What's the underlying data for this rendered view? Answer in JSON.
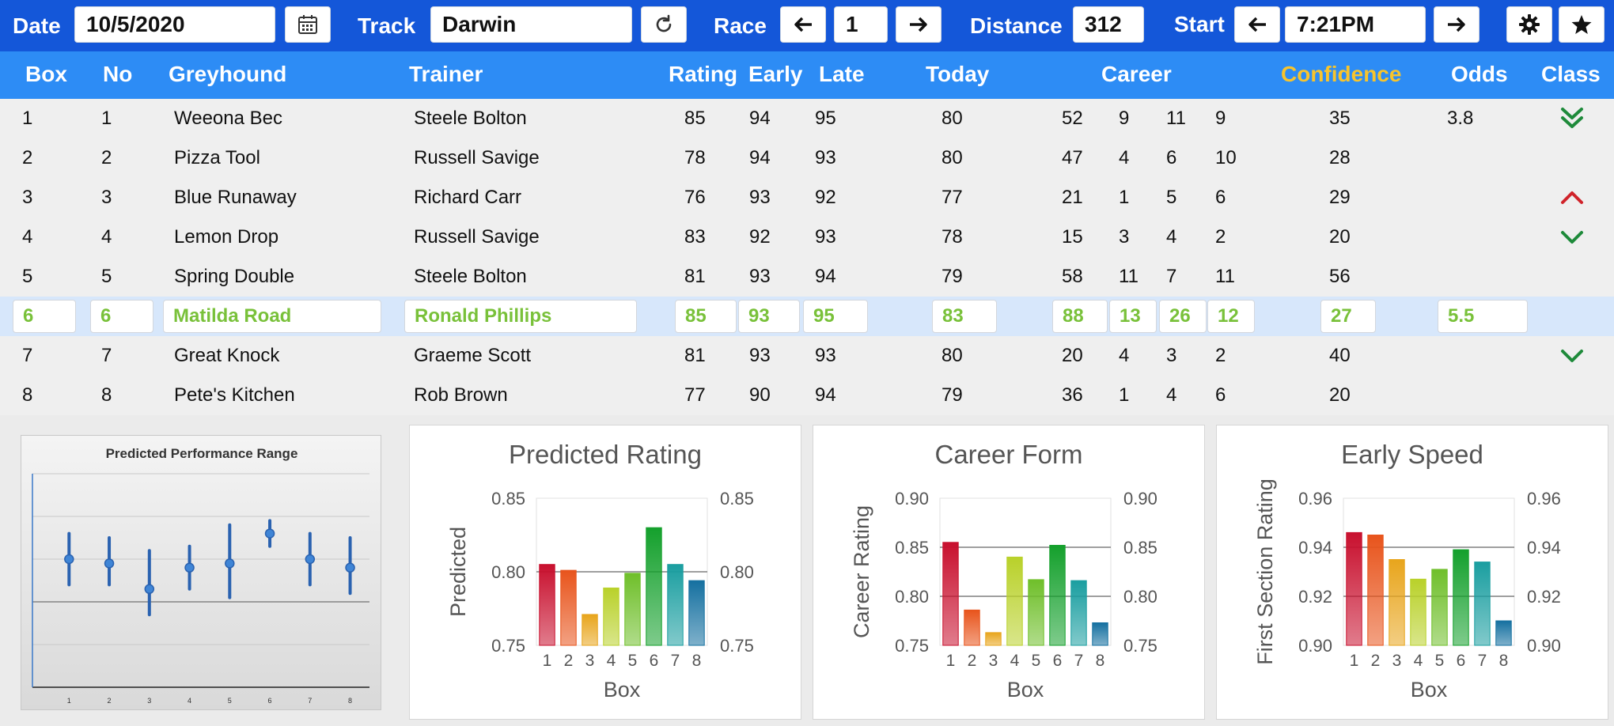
{
  "toolbar": {
    "date_label": "Date",
    "date_value": "10/5/2020",
    "calendar_icon": "calendar-icon",
    "track_label": "Track",
    "track_value": "Darwin",
    "refresh_icon": "refresh-icon",
    "race_label": "Race",
    "race_value": "1",
    "distance_label": "Distance",
    "distance_value": "312",
    "start_label": "Start",
    "start_value": "7:21PM",
    "settings_icon": "gear-icon",
    "favorite_icon": "star-icon"
  },
  "table": {
    "headers": {
      "box": "Box",
      "no": "No",
      "greyhound": "Greyhound",
      "trainer": "Trainer",
      "rating": "Rating",
      "early": "Early",
      "late": "Late",
      "today": "Today",
      "career": "Career",
      "confidence": "Confidence",
      "odds": "Odds",
      "class": "Class"
    },
    "rows": [
      {
        "box": "1",
        "no": "1",
        "greyhound": "Weeona Bec",
        "trainer": "Steele Bolton",
        "rating": "85",
        "early": "94",
        "late": "95",
        "today": "80",
        "career": [
          "52",
          "9",
          "11",
          "9"
        ],
        "confidence": "35",
        "odds": "3.8",
        "class": "double-down"
      },
      {
        "box": "2",
        "no": "2",
        "greyhound": "Pizza Tool",
        "trainer": "Russell Savige",
        "rating": "78",
        "early": "94",
        "late": "93",
        "today": "80",
        "career": [
          "47",
          "4",
          "6",
          "10"
        ],
        "confidence": "28",
        "odds": "",
        "class": "none"
      },
      {
        "box": "3",
        "no": "3",
        "greyhound": "Blue Runaway",
        "trainer": "Richard Carr",
        "rating": "76",
        "early": "93",
        "late": "92",
        "today": "77",
        "career": [
          "21",
          "1",
          "5",
          "6"
        ],
        "confidence": "29",
        "odds": "",
        "class": "up"
      },
      {
        "box": "4",
        "no": "4",
        "greyhound": "Lemon Drop",
        "trainer": "Russell Savige",
        "rating": "83",
        "early": "92",
        "late": "93",
        "today": "78",
        "career": [
          "15",
          "3",
          "4",
          "2"
        ],
        "confidence": "20",
        "odds": "",
        "class": "down"
      },
      {
        "box": "5",
        "no": "5",
        "greyhound": "Spring Double",
        "trainer": "Steele Bolton",
        "rating": "81",
        "early": "93",
        "late": "94",
        "today": "79",
        "career": [
          "58",
          "11",
          "7",
          "11"
        ],
        "confidence": "56",
        "odds": "",
        "class": "none"
      },
      {
        "box": "6",
        "no": "6",
        "greyhound": "Matilda Road",
        "trainer": "Ronald Phillips",
        "rating": "85",
        "early": "93",
        "late": "95",
        "today": "83",
        "career": [
          "88",
          "13",
          "26",
          "12"
        ],
        "confidence": "27",
        "odds": "5.5",
        "class": "none",
        "selected": true
      },
      {
        "box": "7",
        "no": "7",
        "greyhound": "Great Knock",
        "trainer": "Graeme Scott",
        "rating": "81",
        "early": "93",
        "late": "93",
        "today": "80",
        "career": [
          "20",
          "4",
          "3",
          "2"
        ],
        "confidence": "40",
        "odds": "",
        "class": "down"
      },
      {
        "box": "8",
        "no": "8",
        "greyhound": "Pete's Kitchen",
        "trainer": "Rob Brown",
        "rating": "77",
        "early": "90",
        "late": "94",
        "today": "79",
        "career": [
          "36",
          "1",
          "4",
          "6"
        ],
        "confidence": "20",
        "odds": "",
        "class": "none"
      }
    ]
  },
  "colors": {
    "toolbar_bg": "#1457d9",
    "header_bg": "#2d8cf5",
    "confidence_header": "#f7c42d",
    "selected_text": "#79c13a",
    "class_up": "#d0232a",
    "class_down": "#1e8a3a",
    "bar_colors": [
      "#c8102e",
      "#e8541c",
      "#e8a51c",
      "#b9d12a",
      "#6fbf2a",
      "#14a02c",
      "#1a9ea0",
      "#1570a0"
    ]
  },
  "chart_data": [
    {
      "type": "range",
      "title": "Predicted Performance Range",
      "categories": [
        "1",
        "2",
        "3",
        "4",
        "5",
        "6",
        "7",
        "8"
      ],
      "mid": [
        0.8,
        0.79,
        0.73,
        0.78,
        0.79,
        0.86,
        0.8,
        0.78
      ],
      "low": [
        0.74,
        0.74,
        0.67,
        0.73,
        0.71,
        0.83,
        0.74,
        0.72
      ],
      "high": [
        0.86,
        0.85,
        0.82,
        0.83,
        0.88,
        0.89,
        0.86,
        0.85
      ],
      "ylim": [
        0.5,
        1.0
      ]
    },
    {
      "type": "bar",
      "title": "Predicted Rating",
      "xlabel": "Box",
      "ylabel": "Predicted",
      "categories": [
        "1",
        "2",
        "3",
        "4",
        "5",
        "6",
        "7",
        "8"
      ],
      "values": [
        0.805,
        0.801,
        0.771,
        0.789,
        0.799,
        0.83,
        0.805,
        0.794
      ],
      "ylim": [
        0.75,
        0.85
      ],
      "yticks": [
        "0.85",
        "0.80",
        "0.75"
      ],
      "y2ticks": [
        "0.85",
        "0.80",
        "0.75"
      ]
    },
    {
      "type": "bar",
      "title": "Career Form",
      "xlabel": "Box",
      "ylabel": "Career Rating",
      "categories": [
        "1",
        "2",
        "3",
        "4",
        "5",
        "6",
        "7",
        "8"
      ],
      "values": [
        0.855,
        0.786,
        0.763,
        0.84,
        0.817,
        0.852,
        0.816,
        0.773
      ],
      "ylim": [
        0.75,
        0.9
      ],
      "yticks": [
        "0.90",
        "0.85",
        "0.80",
        "0.75"
      ],
      "y2ticks": [
        "0.90",
        "0.85",
        "0.80",
        "0.75"
      ]
    },
    {
      "type": "bar",
      "title": "Early Speed",
      "xlabel": "Box",
      "ylabel": "First Section Rating",
      "categories": [
        "1",
        "2",
        "3",
        "4",
        "5",
        "6",
        "7",
        "8"
      ],
      "values": [
        0.946,
        0.945,
        0.935,
        0.927,
        0.931,
        0.939,
        0.934,
        0.91
      ],
      "ylim": [
        0.9,
        0.96
      ],
      "yticks": [
        "0.96",
        "0.94",
        "0.92",
        "0.90"
      ],
      "y2ticks": [
        "0.96",
        "0.94",
        "0.92",
        "0.90"
      ]
    }
  ]
}
